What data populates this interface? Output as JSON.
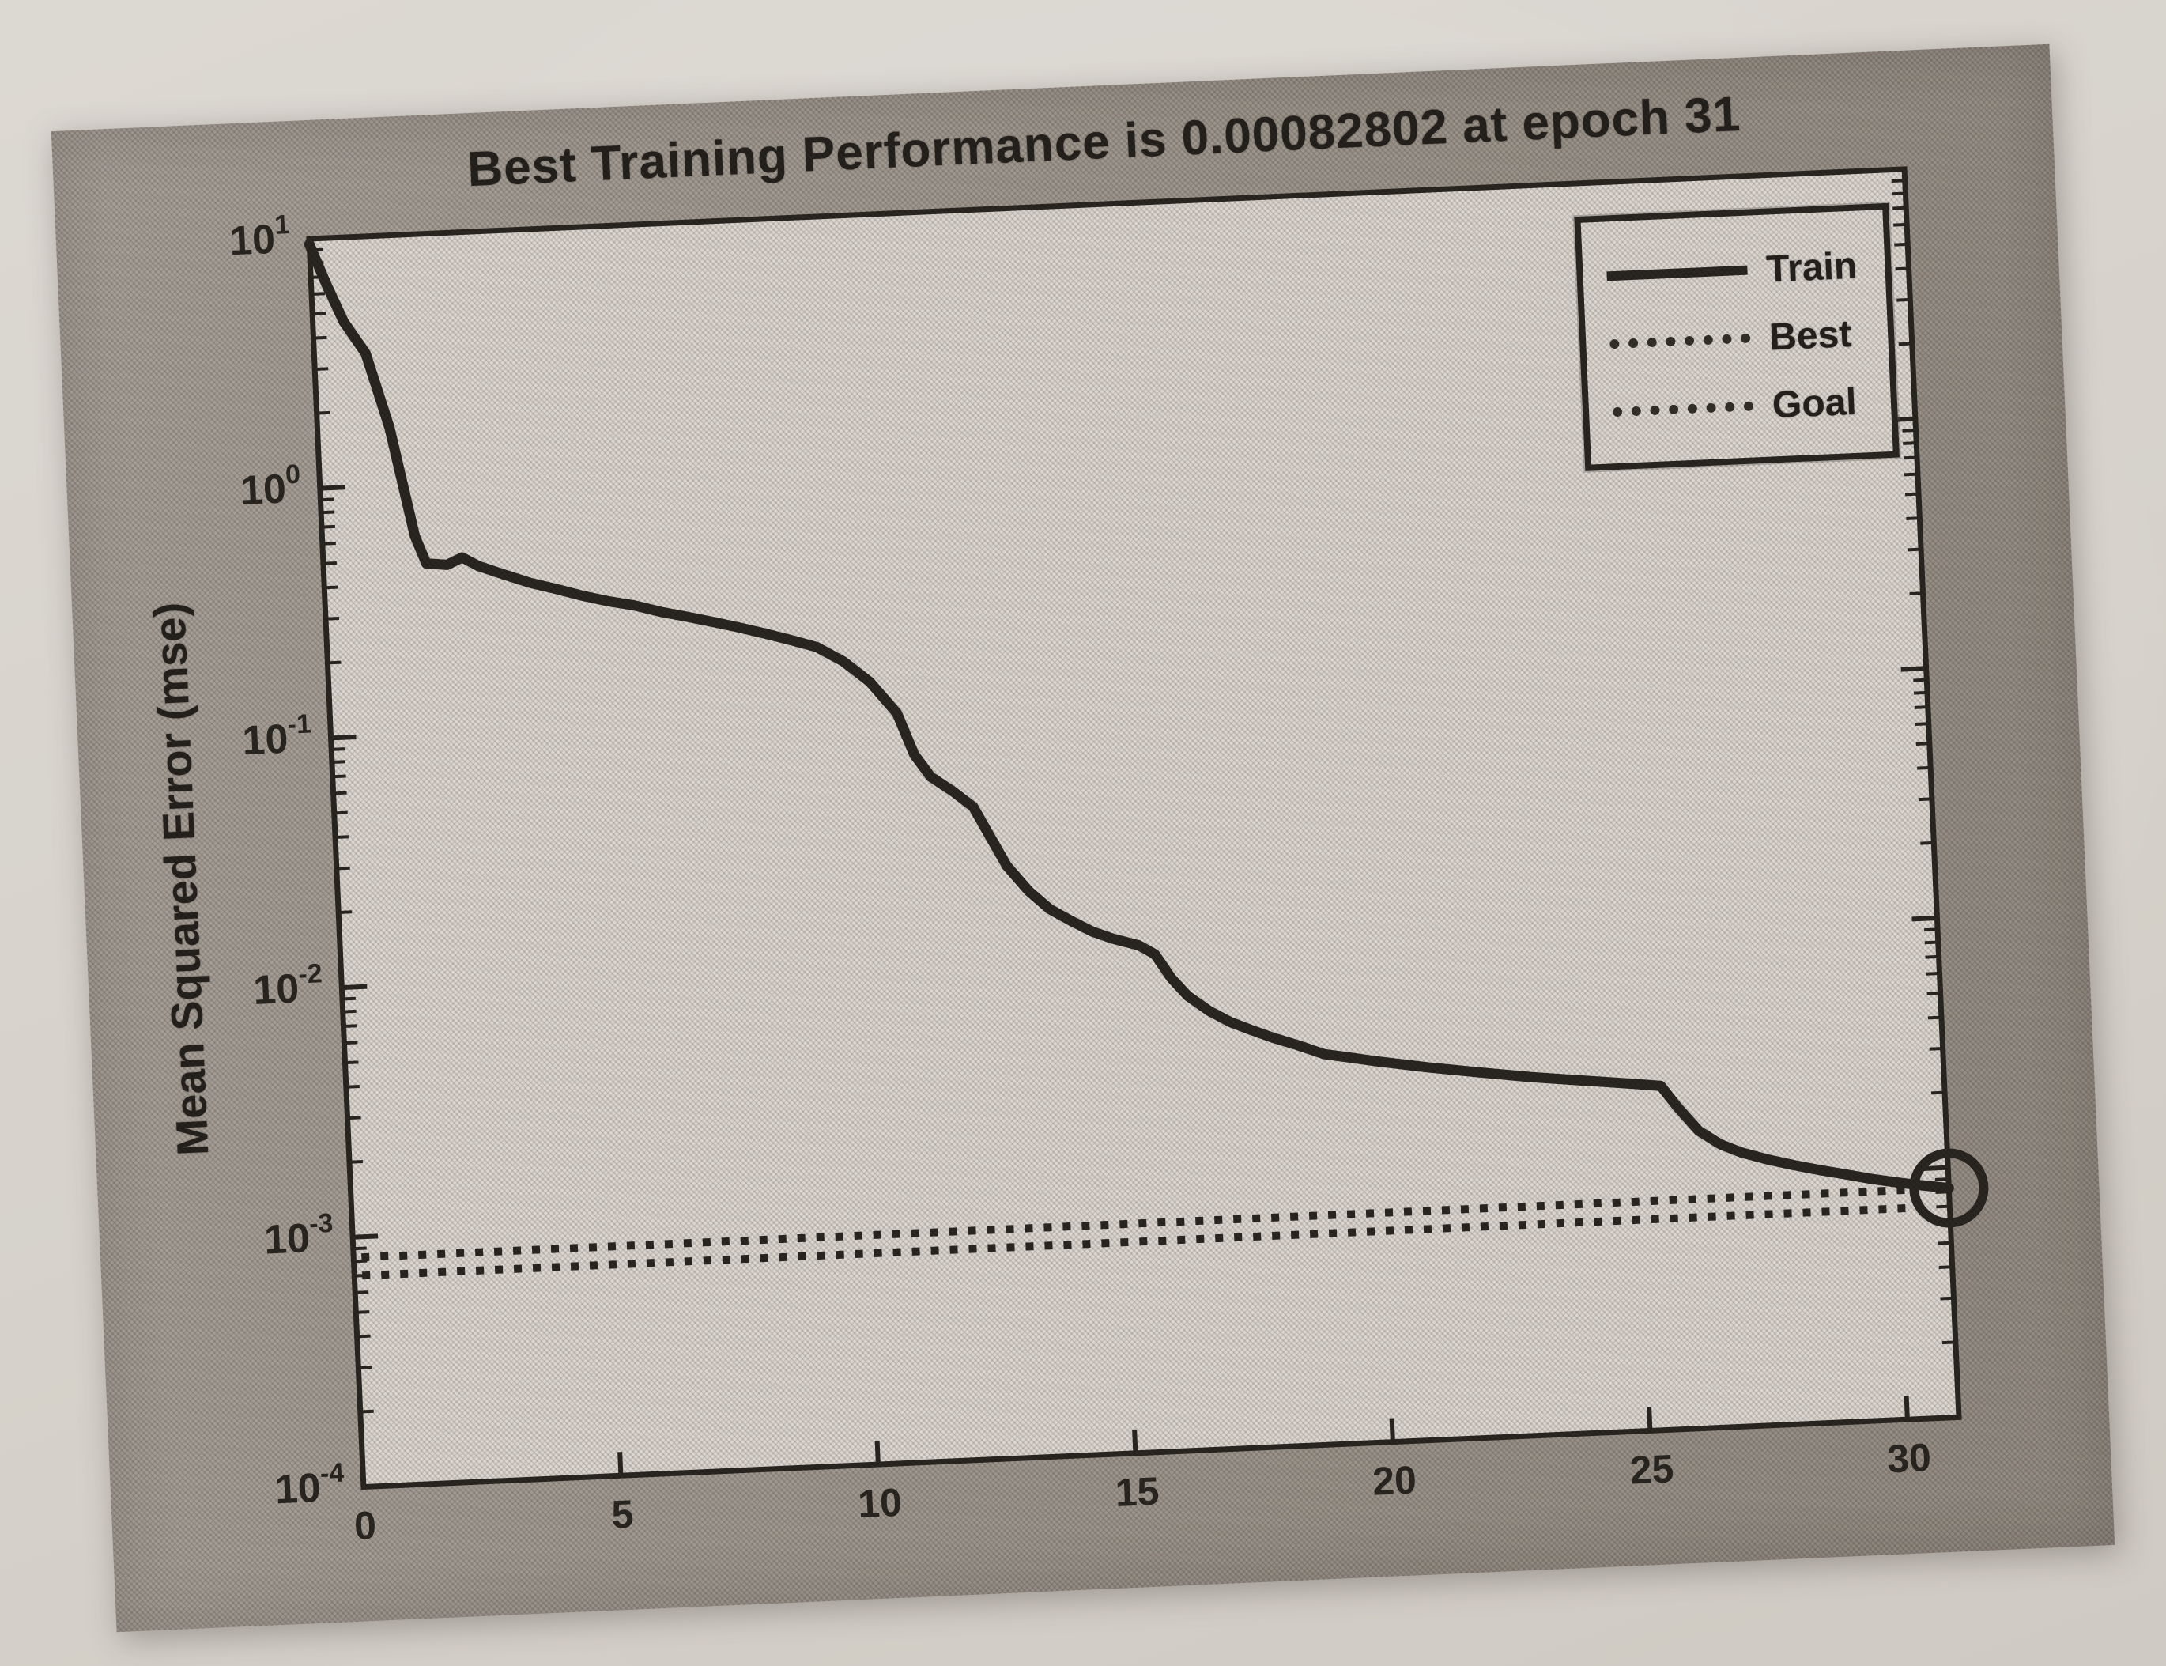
{
  "figure": {
    "kind": "MATLAB neural network training performance plot (scanned print)",
    "ink_color": "#2b2722",
    "paper_color": "#d8d4ce",
    "figure_band_color": "#a09890",
    "plot_bg_color": "#dcd7d0"
  },
  "chart_data": {
    "type": "line",
    "title": "Best Training Performance is 0.00082802 at epoch 31",
    "xlabel": "",
    "ylabel": "Mean Squared Error  (mse)",
    "x_ticks": [
      0,
      5,
      10,
      15,
      20,
      25,
      30
    ],
    "xlim": [
      0,
      31
    ],
    "ylim": [
      0.0001,
      10
    ],
    "y_scale": "log",
    "y_tick_base": 10,
    "y_tick_exponents": [
      1,
      0,
      -1,
      -2,
      -3,
      -4
    ],
    "grid": false,
    "legend_position": "top-right",
    "legend": [
      "Train",
      "Best",
      "Goal"
    ],
    "best": {
      "value": 0.00082802,
      "epoch": 31
    },
    "goal_value_estimate": 0.0007,
    "marker": {
      "shape": "circle",
      "x": 31,
      "y": 0.00082802
    },
    "series": [
      {
        "name": "Train",
        "style": "solid",
        "points": [
          [
            0,
            9.5
          ],
          [
            0.3,
            6.5
          ],
          [
            0.6,
            4.6
          ],
          [
            1,
            3.4
          ],
          [
            1.4,
            1.7
          ],
          [
            1.8,
            0.62
          ],
          [
            2,
            0.48
          ],
          [
            2.4,
            0.47
          ],
          [
            2.7,
            0.5
          ],
          [
            3,
            0.46
          ],
          [
            3.5,
            0.42
          ],
          [
            4,
            0.385
          ],
          [
            4.5,
            0.36
          ],
          [
            5,
            0.335
          ],
          [
            5.5,
            0.315
          ],
          [
            6,
            0.3
          ],
          [
            6.5,
            0.28
          ],
          [
            7,
            0.265
          ],
          [
            7.5,
            0.25
          ],
          [
            8,
            0.235
          ],
          [
            8.5,
            0.22
          ],
          [
            9,
            0.205
          ],
          [
            9.5,
            0.19
          ],
          [
            10,
            0.165
          ],
          [
            10.5,
            0.135
          ],
          [
            11,
            0.1
          ],
          [
            11.3,
            0.068
          ],
          [
            11.6,
            0.055
          ],
          [
            12,
            0.048
          ],
          [
            12.4,
            0.041
          ],
          [
            12.7,
            0.031
          ],
          [
            13,
            0.0235
          ],
          [
            13.4,
            0.0185
          ],
          [
            13.8,
            0.0155
          ],
          [
            14.2,
            0.0138
          ],
          [
            14.6,
            0.0124
          ],
          [
            15,
            0.0115
          ],
          [
            15.5,
            0.0107
          ],
          [
            15.8,
            0.0098
          ],
          [
            16.1,
            0.0078
          ],
          [
            16.4,
            0.0066
          ],
          [
            16.8,
            0.0057
          ],
          [
            17.2,
            0.0051
          ],
          [
            17.6,
            0.0047
          ],
          [
            18,
            0.00435
          ],
          [
            18.5,
            0.004
          ],
          [
            19,
            0.00365
          ],
          [
            19.5,
            0.0035
          ],
          [
            20,
            0.00335
          ],
          [
            21,
            0.0031
          ],
          [
            22,
            0.0029
          ],
          [
            23,
            0.00272
          ],
          [
            24,
            0.00258
          ],
          [
            25,
            0.00245
          ],
          [
            25.5,
            0.00238
          ],
          [
            25.8,
            0.00195
          ],
          [
            26.2,
            0.00155
          ],
          [
            26.6,
            0.00136
          ],
          [
            27,
            0.00125
          ],
          [
            27.5,
            0.00116
          ],
          [
            28,
            0.00109
          ],
          [
            28.5,
            0.00103
          ],
          [
            29,
            0.00098
          ],
          [
            29.5,
            0.00093
          ],
          [
            30,
            0.00089
          ],
          [
            30.5,
            0.000857
          ],
          [
            31,
            0.00082802
          ]
        ]
      },
      {
        "name": "Best",
        "style": "dotted",
        "y": 0.00082802
      },
      {
        "name": "Goal",
        "style": "dotted",
        "y": 0.0007
      }
    ]
  }
}
